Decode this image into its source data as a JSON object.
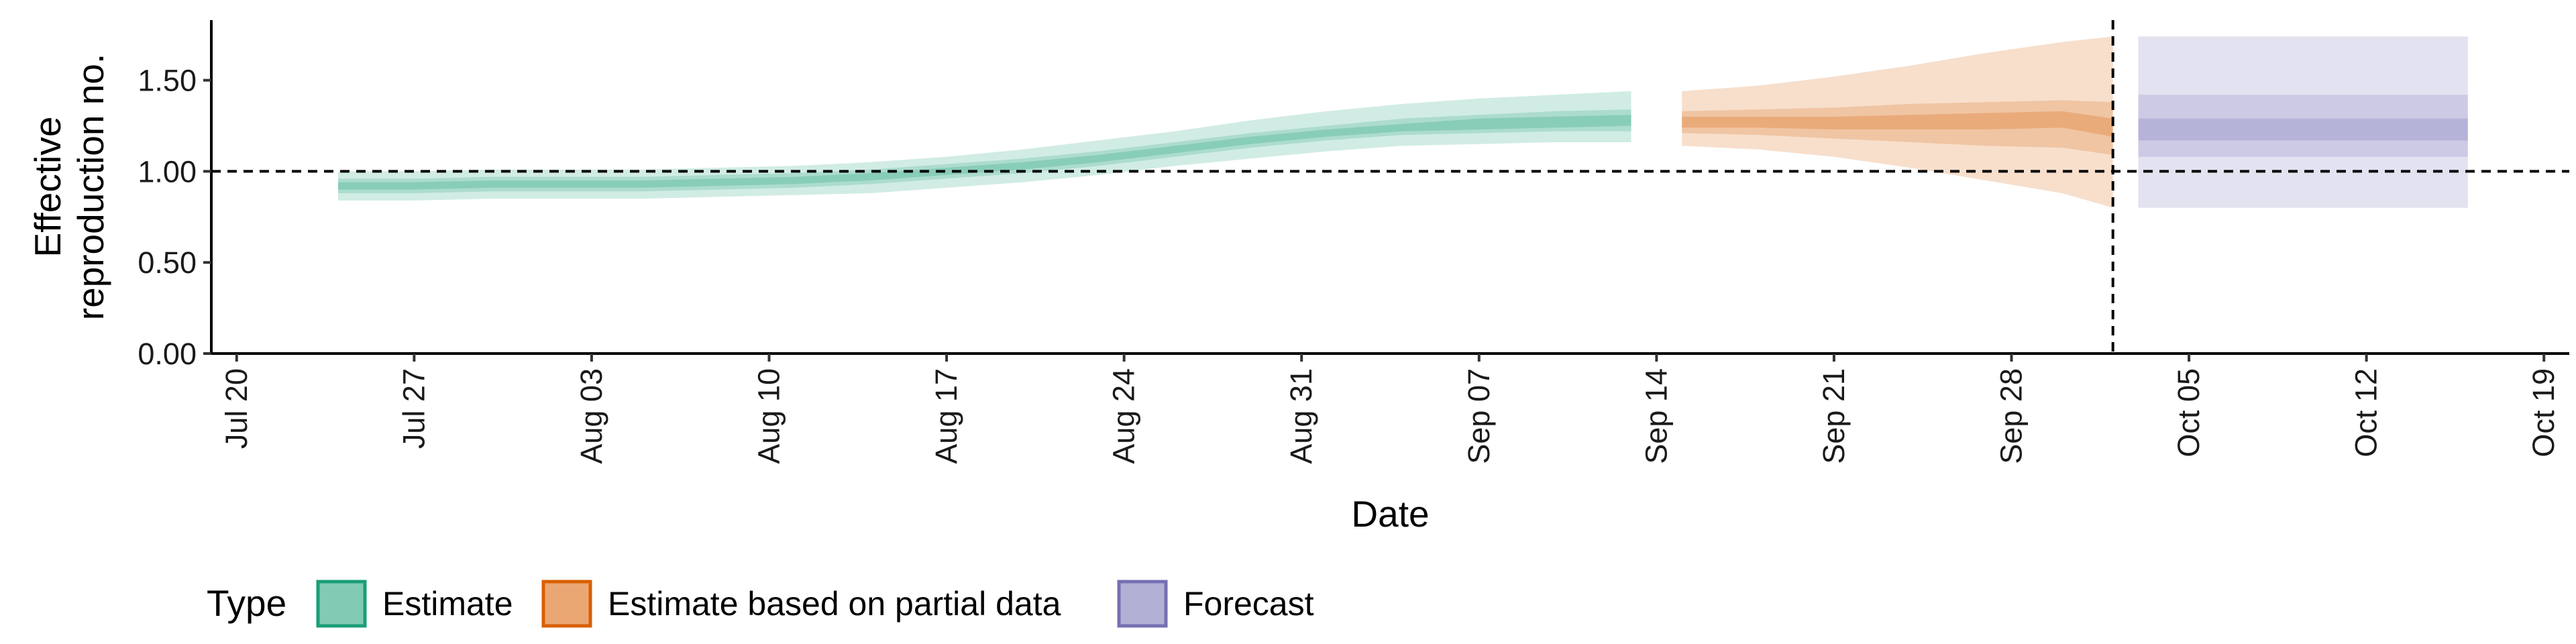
{
  "chart_data": {
    "type": "area",
    "xlabel": "Date",
    "ylabel": "Effective\nreproduction no.",
    "ylabel_lines": [
      "Effective",
      "reproduction no."
    ],
    "ylim": [
      0,
      1.83
    ],
    "y_ticks": [
      {
        "value": 0.0,
        "label": "0.00"
      },
      {
        "value": 0.5,
        "label": "0.50"
      },
      {
        "value": 1.0,
        "label": "1.00"
      },
      {
        "value": 1.5,
        "label": "1.50"
      }
    ],
    "x_range": [
      "2020-07-19",
      "2020-10-20"
    ],
    "x_ticks": [
      {
        "date": "2020-07-20",
        "label": "Jul 20"
      },
      {
        "date": "2020-07-27",
        "label": "Jul 27"
      },
      {
        "date": "2020-08-03",
        "label": "Aug 03"
      },
      {
        "date": "2020-08-10",
        "label": "Aug 10"
      },
      {
        "date": "2020-08-17",
        "label": "Aug 17"
      },
      {
        "date": "2020-08-24",
        "label": "Aug 24"
      },
      {
        "date": "2020-08-31",
        "label": "Aug 31"
      },
      {
        "date": "2020-09-07",
        "label": "Sep 07"
      },
      {
        "date": "2020-09-14",
        "label": "Sep 14"
      },
      {
        "date": "2020-09-21",
        "label": "Sep 21"
      },
      {
        "date": "2020-09-28",
        "label": "Sep 28"
      },
      {
        "date": "2020-10-05",
        "label": "Oct 05"
      },
      {
        "date": "2020-10-12",
        "label": "Oct 12"
      },
      {
        "date": "2020-10-19",
        "label": "Oct 19"
      }
    ],
    "reference_line_y": 1.0,
    "forecast_date_line": "2020-10-02",
    "grid": false,
    "legend_position": "bottom-left",
    "legend_title": "Type",
    "colors": {
      "Estimate": "#1b9e77",
      "Estimate based on partial data": "#d95f02",
      "Forecast": "#7570b3"
    },
    "series": [
      {
        "name": "Estimate",
        "x": [
          "2020-07-24",
          "2020-07-27",
          "2020-07-30",
          "2020-08-02",
          "2020-08-05",
          "2020-08-08",
          "2020-08-11",
          "2020-08-14",
          "2020-08-17",
          "2020-08-20",
          "2020-08-23",
          "2020-08-26",
          "2020-08-29",
          "2020-09-01",
          "2020-09-04",
          "2020-09-07",
          "2020-09-10",
          "2020-09-13"
        ],
        "median": [
          0.92,
          0.92,
          0.93,
          0.93,
          0.93,
          0.94,
          0.95,
          0.97,
          1.0,
          1.03,
          1.07,
          1.12,
          1.17,
          1.21,
          1.24,
          1.26,
          1.27,
          1.28
        ],
        "lower_20": [
          0.9,
          0.9,
          0.91,
          0.91,
          0.91,
          0.92,
          0.93,
          0.95,
          0.98,
          1.01,
          1.05,
          1.1,
          1.15,
          1.19,
          1.22,
          1.23,
          1.24,
          1.25
        ],
        "upper_20": [
          0.94,
          0.94,
          0.95,
          0.95,
          0.95,
          0.96,
          0.97,
          0.99,
          1.02,
          1.05,
          1.09,
          1.14,
          1.19,
          1.23,
          1.26,
          1.29,
          1.3,
          1.31
        ],
        "lower_50": [
          0.88,
          0.88,
          0.89,
          0.89,
          0.89,
          0.9,
          0.91,
          0.93,
          0.96,
          0.99,
          1.03,
          1.08,
          1.13,
          1.17,
          1.2,
          1.21,
          1.22,
          1.22
        ],
        "upper_50": [
          0.96,
          0.96,
          0.97,
          0.97,
          0.97,
          0.98,
          0.99,
          1.01,
          1.04,
          1.07,
          1.11,
          1.16,
          1.21,
          1.25,
          1.29,
          1.31,
          1.33,
          1.34
        ],
        "lower_90": [
          0.84,
          0.84,
          0.85,
          0.85,
          0.85,
          0.86,
          0.87,
          0.88,
          0.91,
          0.94,
          0.98,
          1.03,
          1.07,
          1.11,
          1.14,
          1.15,
          1.16,
          1.16
        ],
        "upper_90": [
          1.0,
          1.0,
          1.01,
          1.01,
          1.01,
          1.02,
          1.03,
          1.05,
          1.08,
          1.12,
          1.17,
          1.22,
          1.28,
          1.33,
          1.37,
          1.4,
          1.42,
          1.44
        ]
      },
      {
        "name": "Estimate based on partial data",
        "x": [
          "2020-09-15",
          "2020-09-18",
          "2020-09-21",
          "2020-09-24",
          "2020-09-27",
          "2020-09-30",
          "2020-10-02"
        ],
        "median": [
          1.27,
          1.27,
          1.26,
          1.27,
          1.28,
          1.29,
          1.24
        ],
        "lower_20": [
          1.24,
          1.24,
          1.23,
          1.23,
          1.23,
          1.24,
          1.19
        ],
        "upper_20": [
          1.3,
          1.3,
          1.3,
          1.31,
          1.32,
          1.33,
          1.29
        ],
        "lower_50": [
          1.21,
          1.2,
          1.18,
          1.16,
          1.14,
          1.13,
          1.09
        ],
        "upper_50": [
          1.33,
          1.34,
          1.35,
          1.37,
          1.38,
          1.39,
          1.38
        ],
        "lower_90": [
          1.14,
          1.12,
          1.08,
          1.02,
          0.95,
          0.88,
          0.8
        ],
        "upper_90": [
          1.44,
          1.47,
          1.52,
          1.58,
          1.65,
          1.71,
          1.74
        ]
      },
      {
        "name": "Forecast",
        "x": [
          "2020-10-03",
          "2020-10-16"
        ],
        "median": [
          1.23,
          1.23
        ],
        "lower_20": [
          1.17,
          1.17
        ],
        "upper_20": [
          1.29,
          1.29
        ],
        "lower_50": [
          1.08,
          1.08
        ],
        "upper_50": [
          1.42,
          1.42
        ],
        "lower_90": [
          0.8,
          0.8
        ],
        "upper_90": [
          1.74,
          1.74
        ]
      }
    ]
  }
}
